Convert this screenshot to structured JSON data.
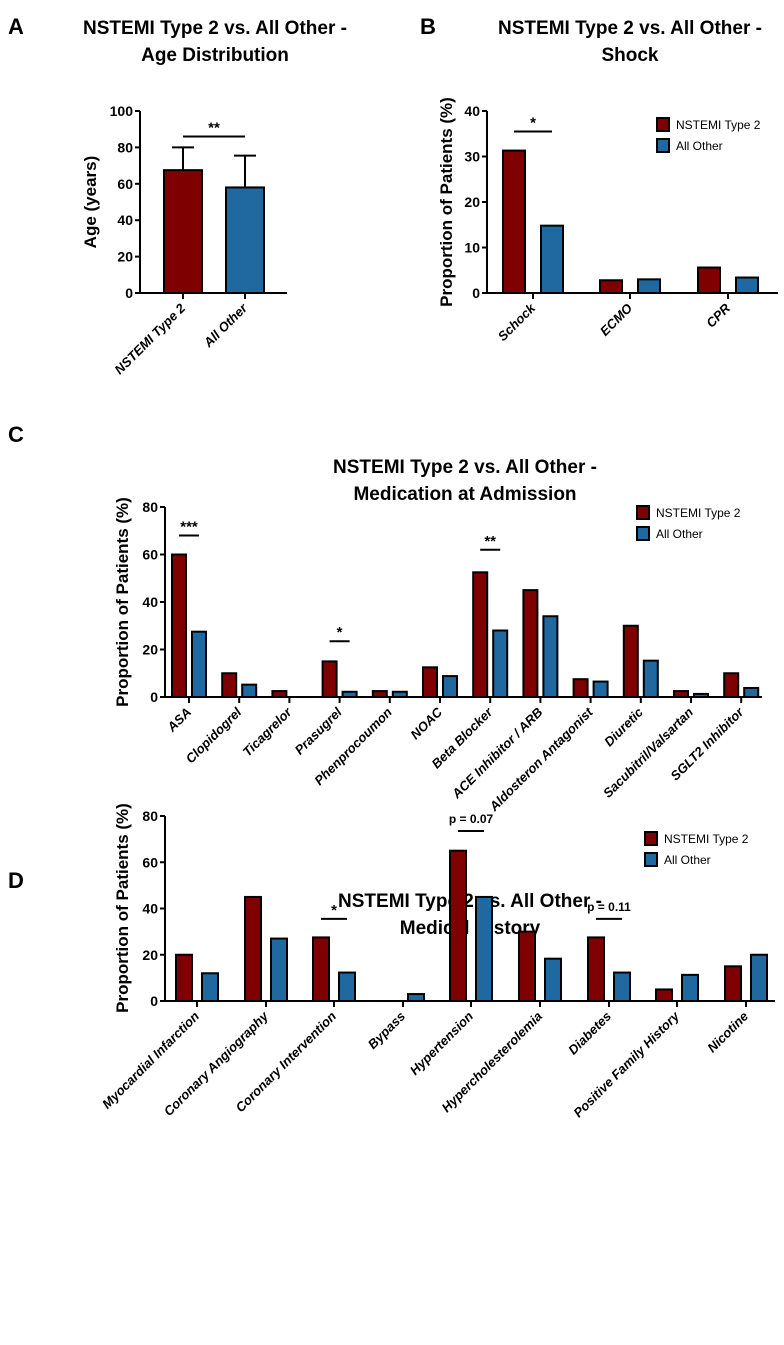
{
  "colors": {
    "nstemi": "#7f0000",
    "other": "#1f68a0",
    "outline": "#000000"
  },
  "chart_data": [
    {
      "id": "A",
      "type": "bar",
      "panel_label": "A",
      "title": [
        "NSTEMI Type 2 vs. All Other -",
        "Age Distribution"
      ],
      "ylabel": "Age (years)",
      "xlabel": "",
      "ylim": [
        0,
        100
      ],
      "yticks": [
        0,
        20,
        40,
        60,
        80,
        100
      ],
      "categories": [
        "NSTEMI Type 2",
        "All Other"
      ],
      "values": [
        67.5,
        58
      ],
      "error_upper": [
        80,
        75.5
      ],
      "significance": [
        {
          "from": 0,
          "to": 1,
          "label": "**",
          "y": 86
        }
      ]
    },
    {
      "id": "B",
      "type": "bar",
      "panel_label": "B",
      "title": [
        "NSTEMI Type 2 vs. All Other -",
        "Shock"
      ],
      "ylabel": "Proportion of Patients (%)",
      "xlabel": "",
      "ylim": [
        0,
        40
      ],
      "yticks": [
        0,
        10,
        20,
        30,
        40
      ],
      "legend": {
        "position": "top-right",
        "entries": [
          "NSTEMI Type 2",
          "All Other"
        ]
      },
      "categories": [
        "Schock",
        "ECMO",
        "CPR"
      ],
      "series": [
        {
          "name": "NSTEMI Type 2",
          "values": [
            31.3,
            2.8,
            5.6
          ]
        },
        {
          "name": "All Other",
          "values": [
            14.8,
            3.0,
            3.4
          ]
        }
      ],
      "significance": [
        {
          "category": 0,
          "label": "*",
          "y": 35.5
        }
      ]
    },
    {
      "id": "C",
      "type": "bar",
      "panel_label": "C",
      "title": [
        "NSTEMI Type 2 vs. All Other -",
        "Medication at Admission"
      ],
      "ylabel": "Proportion of Patients (%)",
      "xlabel": "",
      "ylim": [
        0,
        80
      ],
      "yticks": [
        0,
        20,
        40,
        60,
        80
      ],
      "legend": {
        "position": "top-right",
        "entries": [
          "NSTEMI Type 2",
          "All Other"
        ]
      },
      "categories": [
        "ASA",
        "Clopidogrel",
        "Ticagrelor",
        "Prasugrel",
        "Phenprocoumon",
        "NOAC",
        "Beta Blocker",
        "ACE Inhibitor / ARB",
        "Aldosteron Antagonist",
        "Diuretic",
        "Sacubitril/Valsartan",
        "SGLT2 Inhibitor"
      ],
      "series": [
        {
          "name": "NSTEMI Type 2",
          "values": [
            60,
            10,
            2.5,
            15,
            2.5,
            12.5,
            52.5,
            45,
            7.5,
            30,
            2.5,
            10
          ]
        },
        {
          "name": "All Other",
          "values": [
            27.5,
            5.2,
            0,
            2.2,
            2.2,
            8.8,
            28,
            34,
            6.5,
            15.3,
            1.3,
            3.8
          ]
        }
      ],
      "significance": [
        {
          "category": 0,
          "label": "***",
          "y": 68
        },
        {
          "category": 3,
          "label": "*",
          "y": 23.5
        },
        {
          "category": 6,
          "label": "**",
          "y": 62
        }
      ]
    },
    {
      "id": "D",
      "type": "bar",
      "panel_label": "D",
      "title": [
        "NSTEMI Type 2 vs. All Other -",
        "Medical History"
      ],
      "ylabel": "Proportion of Patients (%)",
      "xlabel": "",
      "ylim": [
        0,
        80
      ],
      "yticks": [
        0,
        20,
        40,
        60,
        80
      ],
      "legend": {
        "position": "top-right",
        "entries": [
          "NSTEMI Type 2",
          "All Other"
        ]
      },
      "categories": [
        "Myocardial Infarction",
        "Coronary Angiography",
        "Coronary Intervention",
        "Bypass",
        "Hypertension",
        "Hypercholesterolemia",
        "Diabetes",
        "Positive Family History",
        "Nicotine"
      ],
      "series": [
        {
          "name": "NSTEMI Type 2",
          "values": [
            20,
            45,
            27.5,
            0,
            65,
            30,
            27.5,
            5,
            15
          ]
        },
        {
          "name": "All Other",
          "values": [
            12,
            27,
            12.3,
            3,
            45,
            18.3,
            12.3,
            11.3,
            20
          ]
        }
      ],
      "significance": [
        {
          "category": 2,
          "label": "*",
          "y": 35.5
        },
        {
          "category": 4,
          "label": "p = 0.07",
          "y": 73.5
        },
        {
          "category": 6,
          "label": "p = 0.11",
          "y": 35.5
        }
      ]
    }
  ]
}
